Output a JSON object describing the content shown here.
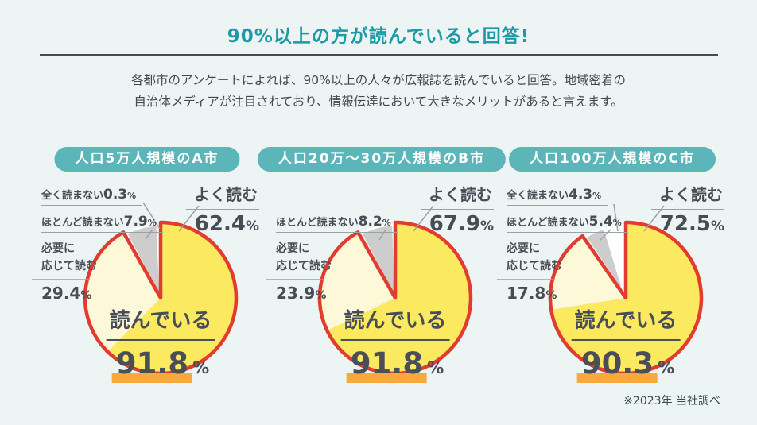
{
  "page": {
    "title": "90%以上の方が読んでいると回答!",
    "description_line1": "各都市のアンケートによれば、90%以上の人々が広報誌を読んでいると回答。地域密着の",
    "description_line2": "自治体メディアが注目されており、情報伝達において大きなメリットがあると言えます。",
    "footnote": "※2023年 当社調べ"
  },
  "units": {
    "percent": "%"
  },
  "colors": {
    "background_mint": "#ECF5F3",
    "title_teal": "#1D9AA6",
    "pill_teal": "#5CB5B8",
    "bright_yellow": "#FBE95F",
    "pale_yellow": "#FDF8D8",
    "gray_slice": "#CDCDCD",
    "white_slice": "#FFFFFF",
    "outline_red": "#E23B30",
    "leader_gray": "#9AA2A4",
    "highlight_orange": "#F8A93C",
    "text_dark": "#474D55"
  },
  "chart_data": [
    {
      "type": "pie",
      "title": "人口5万人規模のA市",
      "center_label": "読んでいる",
      "center_value": "91.8",
      "slices": [
        {
          "label": "よく読む",
          "value": 62.4,
          "color": "#FBE95F",
          "reading": true
        },
        {
          "label_line1": "必要に",
          "label_line2": "応じて読む",
          "label": "必要に応じて読む",
          "value": 29.4,
          "color": "#FDF8D8",
          "reading": true
        },
        {
          "label": "ほとんど読まない",
          "value": 7.9,
          "color": "#CDCDCD",
          "reading": false
        },
        {
          "label": "全く読まない",
          "value": 0.3,
          "color": "#FFFFFF",
          "reading": false
        }
      ]
    },
    {
      "type": "pie",
      "title": "人口20万〜30万人規模のB市",
      "center_label": "読んでいる",
      "center_value": "91.8",
      "slices": [
        {
          "label": "よく読む",
          "value": 67.9,
          "color": "#FBE95F",
          "reading": true
        },
        {
          "label_line1": "必要に",
          "label_line2": "応じて読む",
          "label": "必要に応じて読む",
          "value": 23.9,
          "color": "#FDF8D8",
          "reading": true
        },
        {
          "label": "ほとんど読まない",
          "value": 8.2,
          "color": "#CDCDCD",
          "reading": false
        }
      ]
    },
    {
      "type": "pie",
      "title": "人口100万人規模のC市",
      "center_label": "読んでいる",
      "center_value": "90.3",
      "slices": [
        {
          "label": "よく読む",
          "value": 72.5,
          "color": "#FBE95F",
          "reading": true
        },
        {
          "label_line1": "必要に",
          "label_line2": "応じて読む",
          "label": "必要に応じて読む",
          "value": 17.8,
          "color": "#FDF8D8",
          "reading": true
        },
        {
          "label": "ほとんど読まない",
          "value": 5.4,
          "color": "#CDCDCD",
          "reading": false
        },
        {
          "label": "全く読まない",
          "value": 4.3,
          "color": "#FFFFFF",
          "reading": false
        }
      ]
    }
  ]
}
